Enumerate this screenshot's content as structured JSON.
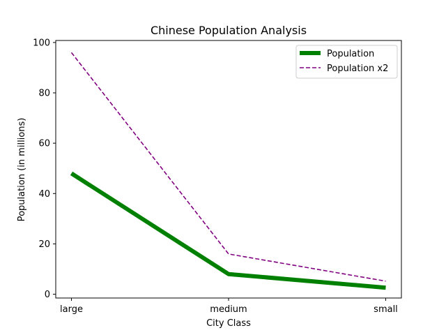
{
  "chart_data": {
    "type": "line",
    "title": "Chinese Population Analysis",
    "xlabel": "City Class",
    "ylabel": "Population (in millions)",
    "categories": [
      "large",
      "medium",
      "small"
    ],
    "ylim": [
      -1.5,
      100.8
    ],
    "yticks": [
      0,
      20,
      40,
      60,
      80,
      100
    ],
    "grid": false,
    "legend_position": "top-right",
    "series": [
      {
        "name": "Population",
        "values": [
          48,
          8,
          2.6
        ],
        "color": "#008000",
        "style": "solid"
      },
      {
        "name": "Population x2",
        "values": [
          96,
          16,
          5.2
        ],
        "color": "#800080",
        "style": "dashed"
      }
    ]
  }
}
